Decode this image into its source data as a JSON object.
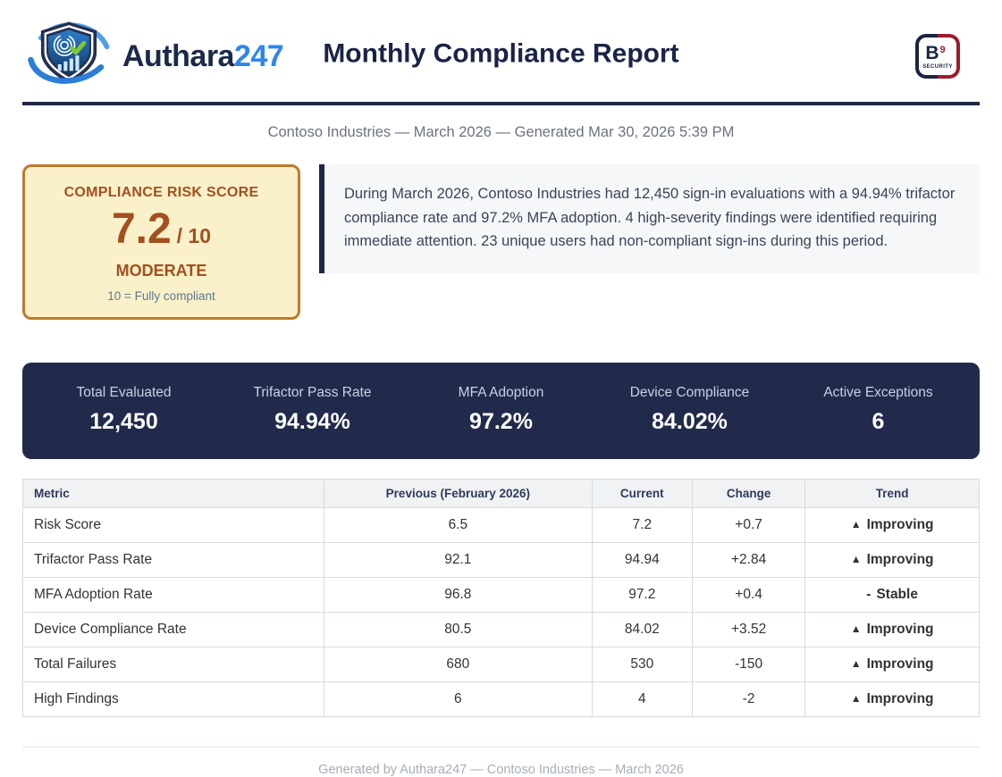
{
  "header": {
    "brand": {
      "name_primary": "Authara",
      "name_suffix": "247"
    },
    "title": "Monthly Compliance Report",
    "b9_badge": {
      "letter": "B",
      "superscript": "9",
      "label": "SECURITY"
    }
  },
  "subtitle": "Contoso Industries — March 2026 — Generated Mar 30, 2026 5:39 PM",
  "risk_card": {
    "title": "COMPLIANCE RISK SCORE",
    "score": "7.2",
    "denominator": "/ 10",
    "level": "MODERATE",
    "note": "10 = Fully compliant"
  },
  "summary": "During March 2026, Contoso Industries had 12,450 sign-in evaluations with a 94.94% trifactor compliance rate and 97.2% MFA adoption. 4 high-severity findings were identified requiring immediate attention. 23 unique users had non-compliant sign-ins during this period.",
  "stats": [
    {
      "label": "Total Evaluated",
      "value": "12,450"
    },
    {
      "label": "Trifactor Pass Rate",
      "value": "94.94%"
    },
    {
      "label": "MFA Adoption",
      "value": "97.2%"
    },
    {
      "label": "Device Compliance",
      "value": "84.02%"
    },
    {
      "label": "Active Exceptions",
      "value": "6"
    }
  ],
  "table": {
    "headers": [
      "Metric",
      "Previous (February 2026)",
      "Current",
      "Change",
      "Trend"
    ],
    "rows": [
      {
        "metric": "Risk Score",
        "previous": "6.5",
        "current": "7.2",
        "change": "+0.7",
        "trend_icon": "▲",
        "trend_label": "Improving",
        "trend_type": "improving"
      },
      {
        "metric": "Trifactor Pass Rate",
        "previous": "92.1",
        "current": "94.94",
        "change": "+2.84",
        "trend_icon": "▲",
        "trend_label": "Improving",
        "trend_type": "improving"
      },
      {
        "metric": "MFA Adoption Rate",
        "previous": "96.8",
        "current": "97.2",
        "change": "+0.4",
        "trend_icon": "-",
        "trend_label": "Stable",
        "trend_type": "stable"
      },
      {
        "metric": "Device Compliance Rate",
        "previous": "80.5",
        "current": "84.02",
        "change": "+3.52",
        "trend_icon": "▲",
        "trend_label": "Improving",
        "trend_type": "improving"
      },
      {
        "metric": "Total Failures",
        "previous": "680",
        "current": "530",
        "change": "-150",
        "trend_icon": "▲",
        "trend_label": "Improving",
        "trend_type": "improving"
      },
      {
        "metric": "High Findings",
        "previous": "6",
        "current": "4",
        "change": "-2",
        "trend_icon": "▲",
        "trend_label": "Improving",
        "trend_type": "improving"
      }
    ]
  },
  "footer": "Generated by Authara247 — Contoso Industries — March 2026",
  "colors": {
    "brand_navy": "#1b2a4a",
    "brand_blue": "#2e86eb",
    "divider_navy": "#1e2748",
    "risk_card_bg": "#faf0c9",
    "risk_card_border": "#bd7b2c",
    "risk_text": "#a3501f",
    "summary_bg": "#f5f7f9",
    "stats_bar_bg": "#212a4b",
    "trend_green": "#14734e",
    "trend_gray": "#6d7480",
    "b9_navy": "#1b2442",
    "b9_red": "#9e1b2e"
  }
}
